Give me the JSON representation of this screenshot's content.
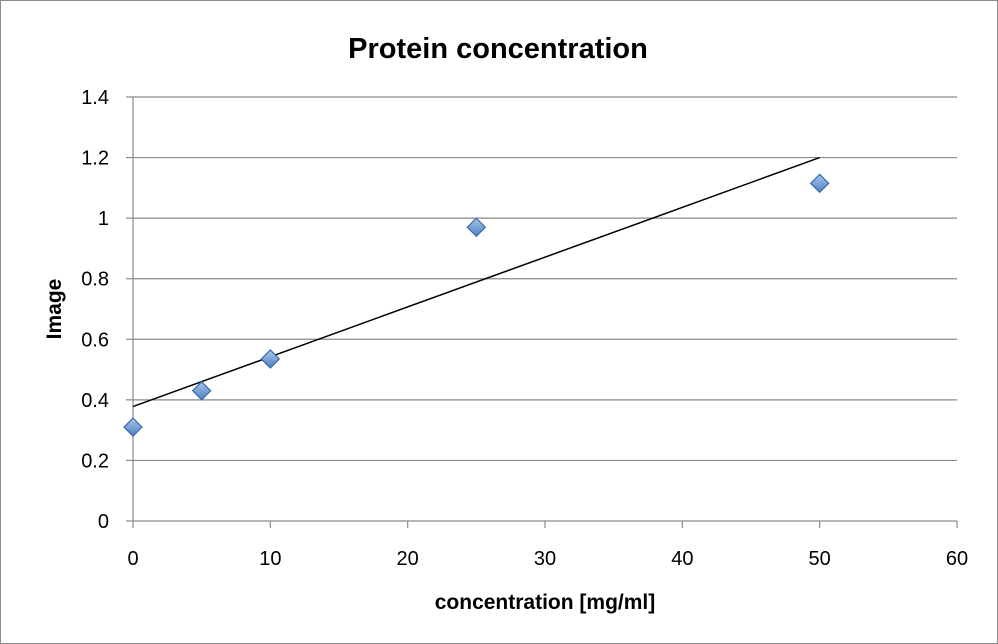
{
  "chart_data": {
    "type": "scatter",
    "title": "Protein concentration",
    "xlabel": "concentration [mg/ml]",
    "ylabel": "Image",
    "xlim": [
      0,
      60
    ],
    "ylim": [
      0,
      1.4
    ],
    "x_ticks": [
      0,
      10,
      20,
      30,
      40,
      50,
      60
    ],
    "y_ticks": [
      0,
      0.2,
      0.4,
      0.6,
      0.8,
      1,
      1.2,
      1.4
    ],
    "grid": "horizontal",
    "legend": "none",
    "series": [
      {
        "marker": "diamond",
        "color": "#4f81bd",
        "points": [
          {
            "x": 0,
            "y": 0.31
          },
          {
            "x": 5,
            "y": 0.43
          },
          {
            "x": 10,
            "y": 0.535
          },
          {
            "x": 25,
            "y": 0.97
          },
          {
            "x": 50,
            "y": 1.115
          }
        ]
      }
    ],
    "trendline": {
      "type": "linear",
      "color": "#000000",
      "from": {
        "x": 0,
        "y": 0.378
      },
      "to": {
        "x": 50,
        "y": 1.2
      }
    }
  }
}
